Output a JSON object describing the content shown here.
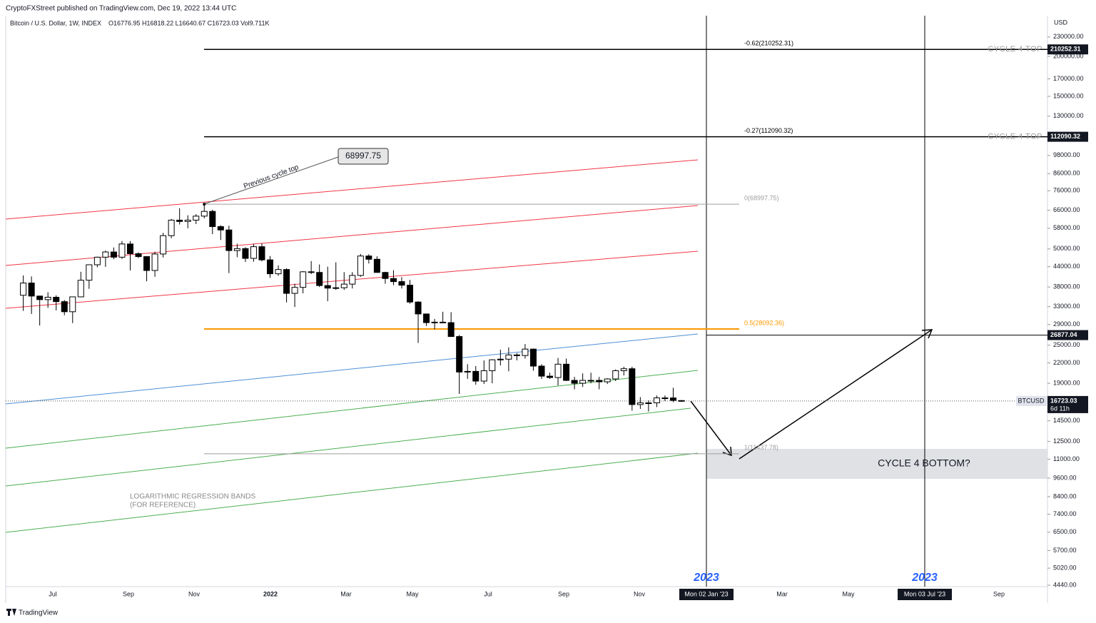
{
  "chart_data": {
    "type": "candlestick",
    "publisher": "CryptoFXStreet published on TradingView.com, Dec 19, 2022 13:44 UTC",
    "title": "Bitcoin / U.S. Dollar, 1W, INDEX",
    "ohlc_text": "O16776.95 H16818.22 L16640.67 C16723.03 Vol9.711K",
    "currency": "USD",
    "footer": "TradingView",
    "log_scale": true,
    "ylim": [
      4440,
      268000
    ],
    "yticks": [
      {
        "value": 230000,
        "label": "230000.00"
      },
      {
        "value": 200000,
        "label": "200000.00"
      },
      {
        "value": 170000,
        "label": "170000.00"
      },
      {
        "value": 150000,
        "label": "150000.00"
      },
      {
        "value": 130000,
        "label": "130000.00"
      },
      {
        "value": 98000,
        "label": "98000.00"
      },
      {
        "value": 86000,
        "label": "86000.00"
      },
      {
        "value": 76000,
        "label": "76000.00"
      },
      {
        "value": 66000,
        "label": "66000.00"
      },
      {
        "value": 58000,
        "label": "58000.00"
      },
      {
        "value": 50000,
        "label": "50000.00"
      },
      {
        "value": 44000,
        "label": "44000.00"
      },
      {
        "value": 38000,
        "label": "38000.00"
      },
      {
        "value": 33000,
        "label": "33000.00"
      },
      {
        "value": 29000,
        "label": "29000.00"
      },
      {
        "value": 25000,
        "label": "25000.00"
      },
      {
        "value": 22000,
        "label": "22000.00"
      },
      {
        "value": 19000,
        "label": "19000.00"
      },
      {
        "value": 14500,
        "label": "14500.00"
      },
      {
        "value": 12500,
        "label": "12500.00"
      },
      {
        "value": 11000,
        "label": "11000.00"
      },
      {
        "value": 9600,
        "label": "9600.00"
      },
      {
        "value": 8400,
        "label": "8400.00"
      },
      {
        "value": 7400,
        "label": "7400.00"
      },
      {
        "value": 6500,
        "label": "6500.00"
      },
      {
        "value": 5700,
        "label": "5700.00"
      },
      {
        "value": 5020,
        "label": "5020.00"
      },
      {
        "value": 4440,
        "label": "4440.00"
      }
    ],
    "x_labels": [
      "Jul",
      "Sep",
      "Nov",
      "2022",
      "Mar",
      "May",
      "Jul",
      "Sep",
      "Nov",
      "Mar",
      "May",
      "Sep"
    ],
    "candles": {
      "open": [
        35800,
        39100,
        35600,
        34700,
        35300,
        34200,
        31800,
        35400,
        39900,
        44600,
        47100,
        48900,
        47100,
        51800,
        48300,
        47300,
        42800,
        48200,
        55000,
        61500,
        60900,
        61500,
        63300,
        65500,
        58700,
        57300,
        49400,
        50100,
        46700,
        50800,
        46200,
        41800,
        43100,
        36300,
        37900,
        42400,
        42200,
        38400,
        37700,
        37800,
        38800,
        41300,
        47500,
        46400,
        42200,
        40400,
        39500,
        38500,
        34100,
        31300,
        29400,
        29500,
        29400,
        26600,
        20600,
        20700,
        19300,
        20800,
        22500,
        22600,
        23300,
        23200,
        24300,
        21500,
        20000,
        19800,
        21800,
        19400,
        19000,
        19400,
        19400,
        19200,
        19600,
        20800,
        21100,
        16300,
        16500,
        16500,
        17100,
        17100,
        16776.95
      ],
      "high": [
        41300,
        41000,
        35700,
        36600,
        35800,
        34600,
        35400,
        42400,
        44700,
        47300,
        49400,
        50500,
        52900,
        52900,
        48800,
        47400,
        49000,
        56100,
        62000,
        67000,
        63700,
        64200,
        69000,
        66300,
        59300,
        59100,
        51900,
        50600,
        51900,
        52000,
        47500,
        44400,
        43500,
        38900,
        42600,
        45800,
        44700,
        44000,
        45400,
        42300,
        42300,
        48200,
        48100,
        47400,
        42400,
        42900,
        40800,
        40000,
        34300,
        31300,
        30200,
        31800,
        31700,
        26900,
        21800,
        21500,
        22400,
        22600,
        24200,
        24600,
        23600,
        25200,
        24400,
        21800,
        20500,
        22800,
        22700,
        19900,
        20400,
        20500,
        19900,
        19700,
        21000,
        21400,
        21400,
        17200,
        16800,
        17400,
        17400,
        18400,
        16818.22
      ],
      "low": [
        32000,
        31300,
        28800,
        32700,
        32100,
        31000,
        29300,
        35300,
        37500,
        43800,
        43900,
        46400,
        46500,
        42800,
        46800,
        39600,
        40900,
        47000,
        54000,
        59600,
        58000,
        59800,
        62300,
        55600,
        53300,
        42000,
        47100,
        45500,
        45600,
        45700,
        40600,
        41200,
        34000,
        32900,
        36300,
        41700,
        38000,
        34300,
        37200,
        37200,
        37600,
        40900,
        45000,
        42100,
        38900,
        38500,
        37600,
        33700,
        25400,
        28700,
        28000,
        29300,
        26700,
        17600,
        19600,
        18800,
        18900,
        19000,
        21600,
        20700,
        22400,
        22700,
        20800,
        19600,
        19600,
        18700,
        19300,
        18200,
        18500,
        19000,
        18200,
        18900,
        19300,
        20100,
        15600,
        15800,
        15500,
        16000,
        16700,
        16600,
        16640.67
      ],
      "close": [
        39100,
        35600,
        34700,
        35300,
        34200,
        31800,
        35400,
        39900,
        44600,
        47100,
        48900,
        47100,
        51800,
        48300,
        47300,
        42800,
        48200,
        55000,
        61500,
        60900,
        61500,
        63300,
        65500,
        58700,
        57300,
        49400,
        50100,
        46700,
        50800,
        46200,
        41800,
        43100,
        36300,
        37900,
        42400,
        42200,
        38400,
        37700,
        37800,
        38800,
        41300,
        47500,
        46400,
        42200,
        40400,
        39500,
        38500,
        34100,
        31300,
        29400,
        29500,
        29400,
        26600,
        20600,
        20700,
        19300,
        20800,
        22500,
        22600,
        23300,
        23200,
        24300,
        21500,
        20000,
        19800,
        21800,
        19400,
        19000,
        19400,
        19400,
        19200,
        19600,
        20800,
        21100,
        16300,
        16500,
        16500,
        17100,
        17100,
        16800,
        16723.03
      ]
    },
    "fib_levels": [
      {
        "label": "-0.62(210252.31)",
        "value": 210252.31,
        "color": "#000000",
        "tag": "CYCLE 4 TOP"
      },
      {
        "label": "-0.27(112090.32)",
        "value": 112090.32,
        "color": "#000000",
        "tag": "CYCLE 4 TOP"
      },
      {
        "label": "0(68997.75)",
        "value": 68997.75,
        "color": "#9e9e9e"
      },
      {
        "label": "0.5(28092.36)",
        "value": 28092.36,
        "color": "#ff9800"
      },
      {
        "label": "1(11437.78)",
        "value": 11437.78,
        "color": "#9e9e9e"
      }
    ],
    "target": {
      "value": 26877.04
    },
    "current_price": {
      "symbol": "BTCUSD",
      "value": 16723.03,
      "countdown": "6d 11h"
    },
    "date_markers": [
      {
        "year": "2023",
        "date": "Mon 02 Jan '23"
      },
      {
        "year": "2023",
        "date": "Mon 03 Jul '23"
      }
    ],
    "previous_top": {
      "text": "Previous cycle top",
      "value": 68997.75
    },
    "bottom_label": "CYCLE 4 BOTTOM?",
    "bands_note": [
      "LOGARITHMIC REGRESSION BANDS",
      "(FOR REFERENCE)"
    ]
  }
}
